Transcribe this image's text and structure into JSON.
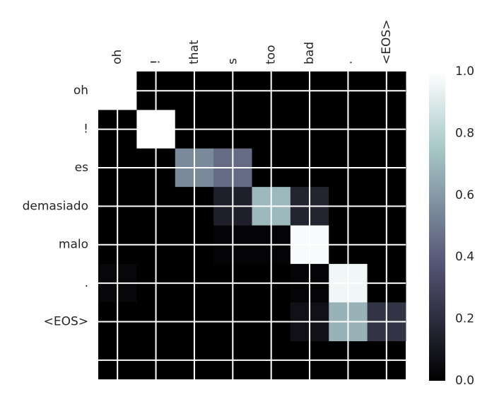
{
  "chart_data": {
    "type": "heatmap",
    "x_labels": [
      "oh",
      "!",
      "that",
      "s",
      "too",
      "bad",
      ".",
      "<EOS>"
    ],
    "y_labels": [
      "oh",
      "!",
      "es",
      "demasiado",
      "malo",
      ".",
      "<EOS>"
    ],
    "values": [
      [
        1.0,
        0.0,
        0.0,
        0.0,
        0.0,
        0.0,
        0.0,
        0.0
      ],
      [
        0.0,
        1.0,
        0.0,
        0.0,
        0.0,
        0.0,
        0.0,
        0.0
      ],
      [
        0.0,
        0.0,
        0.55,
        0.45,
        0.0,
        0.0,
        0.0,
        0.0
      ],
      [
        0.0,
        0.0,
        0.0,
        0.14,
        0.7,
        0.16,
        0.0,
        0.0
      ],
      [
        0.0,
        0.0,
        0.0,
        0.02,
        0.02,
        0.98,
        0.0,
        0.0
      ],
      [
        0.03,
        0.0,
        0.0,
        0.0,
        0.0,
        0.02,
        0.96,
        0.0
      ],
      [
        0.0,
        0.0,
        0.0,
        0.0,
        0.0,
        0.07,
        0.68,
        0.23
      ]
    ],
    "colormap": "bone",
    "colorbar": {
      "min": 0.0,
      "max": 1.0,
      "ticks": [
        "0.0",
        "0.2",
        "0.4",
        "0.6",
        "0.8",
        "1.0"
      ]
    },
    "grid": true,
    "grid_color": "#ffffff"
  }
}
